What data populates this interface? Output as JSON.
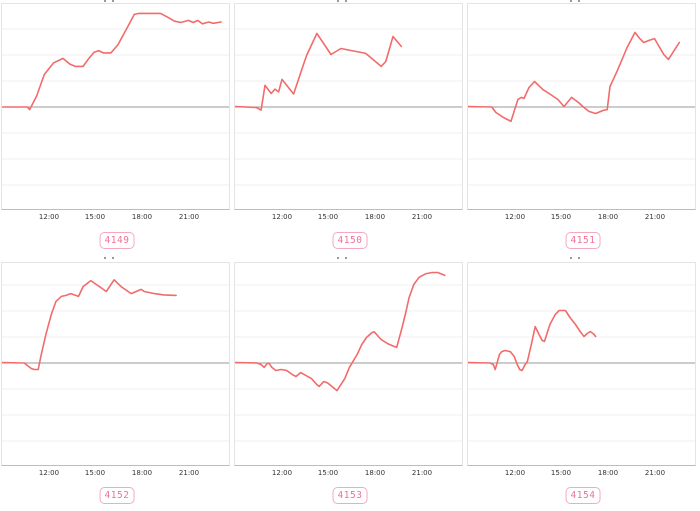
{
  "page": {
    "background": "#ffffff",
    "layout_grid": {
      "rows": 2,
      "cols": 3
    }
  },
  "colors": {
    "line": "#f26b6b",
    "zero_line": "#9a9a9a",
    "grid": "#f1efef",
    "box_border": "#e4e4e4",
    "axis_border": "#bdbdbd",
    "tick_text": "#333333",
    "badge_text": "#ee7296",
    "badge_border": "#f5a9c1"
  },
  "chart_data": [
    {
      "type": "line",
      "series_id": "4149",
      "title": "",
      "x_ticks": [
        "12:00",
        "15:00",
        "18:00",
        "21:00"
      ],
      "x_range_hours": [
        9.0,
        23.6
      ],
      "y_range": [
        -4,
        4
      ],
      "zero_baseline": true,
      "grid": "horizontal",
      "line_color": "#f26b6b",
      "points_time_value": [
        [
          9.0,
          0
        ],
        [
          10.6,
          0
        ],
        [
          10.75,
          -0.1
        ],
        [
          11.2,
          0.42
        ],
        [
          11.7,
          1.25
        ],
        [
          12.3,
          1.7
        ],
        [
          12.9,
          1.87
        ],
        [
          13.35,
          1.65
        ],
        [
          13.7,
          1.56
        ],
        [
          14.2,
          1.56
        ],
        [
          14.55,
          1.85
        ],
        [
          14.9,
          2.1
        ],
        [
          15.2,
          2.17
        ],
        [
          15.5,
          2.08
        ],
        [
          16.0,
          2.08
        ],
        [
          16.45,
          2.4
        ],
        [
          17.0,
          3.0
        ],
        [
          17.5,
          3.56
        ],
        [
          17.8,
          3.6
        ],
        [
          19.2,
          3.6
        ],
        [
          19.7,
          3.44
        ],
        [
          20.1,
          3.3
        ],
        [
          20.5,
          3.25
        ],
        [
          21.0,
          3.33
        ],
        [
          21.3,
          3.25
        ],
        [
          21.6,
          3.33
        ],
        [
          21.9,
          3.2
        ],
        [
          22.3,
          3.27
        ],
        [
          22.6,
          3.22
        ],
        [
          23.1,
          3.27
        ]
      ]
    },
    {
      "type": "line",
      "series_id": "4150",
      "title": "",
      "x_ticks": [
        "12:00",
        "15:00",
        "18:00",
        "21:00"
      ],
      "x_range_hours": [
        9.0,
        23.6
      ],
      "y_range": [
        -4,
        4
      ],
      "zero_baseline": true,
      "grid": "horizontal",
      "line_color": "#f26b6b",
      "points_time_value": [
        [
          9.0,
          0.02
        ],
        [
          10.35,
          -0.02
        ],
        [
          10.65,
          -0.12
        ],
        [
          10.9,
          0.83
        ],
        [
          11.3,
          0.52
        ],
        [
          11.55,
          0.69
        ],
        [
          11.78,
          0.58
        ],
        [
          12.0,
          1.06
        ],
        [
          12.75,
          0.5
        ],
        [
          13.45,
          1.75
        ],
        [
          13.6,
          2.0
        ],
        [
          14.25,
          2.83
        ],
        [
          15.16,
          2.02
        ],
        [
          15.8,
          2.25
        ],
        [
          17.4,
          2.06
        ],
        [
          18.4,
          1.56
        ],
        [
          18.7,
          1.75
        ],
        [
          19.16,
          2.71
        ],
        [
          19.7,
          2.33
        ]
      ]
    },
    {
      "type": "line",
      "series_id": "4151",
      "title": "",
      "x_ticks": [
        "12:00",
        "15:00",
        "18:00",
        "21:00"
      ],
      "x_range_hours": [
        9.0,
        23.6
      ],
      "y_range": [
        -4,
        4
      ],
      "zero_baseline": true,
      "grid": "horizontal",
      "line_color": "#f26b6b",
      "points_time_value": [
        [
          9.0,
          0.02
        ],
        [
          10.5,
          0
        ],
        [
          10.77,
          -0.21
        ],
        [
          11.3,
          -0.42
        ],
        [
          11.74,
          -0.55
        ],
        [
          12.19,
          0.29
        ],
        [
          12.4,
          0.37
        ],
        [
          12.58,
          0.33
        ],
        [
          12.9,
          0.75
        ],
        [
          13.26,
          0.98
        ],
        [
          13.8,
          0.67
        ],
        [
          14.2,
          0.52
        ],
        [
          14.77,
          0.29
        ],
        [
          15.16,
          0.02
        ],
        [
          15.65,
          0.37
        ],
        [
          16.1,
          0.17
        ],
        [
          16.45,
          -0.02
        ],
        [
          16.77,
          -0.17
        ],
        [
          17.2,
          -0.25
        ],
        [
          17.7,
          -0.13
        ],
        [
          17.95,
          -0.1
        ],
        [
          18.13,
          0.79
        ],
        [
          18.58,
          1.37
        ],
        [
          18.77,
          1.63
        ],
        [
          19.23,
          2.29
        ],
        [
          19.74,
          2.87
        ],
        [
          20.05,
          2.63
        ],
        [
          20.3,
          2.48
        ],
        [
          20.65,
          2.56
        ],
        [
          21.0,
          2.63
        ],
        [
          21.6,
          2.02
        ],
        [
          21.9,
          1.83
        ],
        [
          22.6,
          2.48
        ]
      ]
    },
    {
      "type": "line",
      "series_id": "4152",
      "title": "",
      "x_ticks": [
        "12:00",
        "15:00",
        "18:00",
        "21:00"
      ],
      "x_range_hours": [
        9.0,
        23.6
      ],
      "y_range": [
        -4,
        4
      ],
      "zero_baseline": true,
      "grid": "horizontal",
      "line_color": "#f26b6b",
      "points_time_value": [
        [
          9.0,
          0.02
        ],
        [
          10.4,
          0
        ],
        [
          10.85,
          -0.21
        ],
        [
          11.05,
          -0.25
        ],
        [
          11.3,
          -0.25
        ],
        [
          11.5,
          0.33
        ],
        [
          11.8,
          1.1
        ],
        [
          12.15,
          1.87
        ],
        [
          12.45,
          2.37
        ],
        [
          12.8,
          2.56
        ],
        [
          13.1,
          2.6
        ],
        [
          13.4,
          2.67
        ],
        [
          13.9,
          2.56
        ],
        [
          14.2,
          2.94
        ],
        [
          14.7,
          3.17
        ],
        [
          15.35,
          2.9
        ],
        [
          15.7,
          2.75
        ],
        [
          16.2,
          3.2
        ],
        [
          16.65,
          2.94
        ],
        [
          17.3,
          2.67
        ],
        [
          17.95,
          2.83
        ],
        [
          18.15,
          2.75
        ],
        [
          18.8,
          2.67
        ],
        [
          19.4,
          2.62
        ],
        [
          20.2,
          2.6
        ]
      ]
    },
    {
      "type": "line",
      "series_id": "4153",
      "title": "",
      "x_ticks": [
        "12:00",
        "15:00",
        "18:00",
        "21:00"
      ],
      "x_range_hours": [
        9.0,
        23.6
      ],
      "y_range": [
        -4,
        4
      ],
      "zero_baseline": true,
      "grid": "horizontal",
      "line_color": "#f26b6b",
      "points_time_value": [
        [
          9.0,
          0.02
        ],
        [
          10.4,
          0
        ],
        [
          10.65,
          -0.06
        ],
        [
          10.85,
          -0.17
        ],
        [
          11.05,
          -0.02
        ],
        [
          11.15,
          0
        ],
        [
          11.35,
          -0.17
        ],
        [
          11.6,
          -0.29
        ],
        [
          11.95,
          -0.25
        ],
        [
          12.3,
          -0.29
        ],
        [
          12.65,
          -0.44
        ],
        [
          12.9,
          -0.52
        ],
        [
          13.2,
          -0.37
        ],
        [
          13.9,
          -0.6
        ],
        [
          14.25,
          -0.83
        ],
        [
          14.4,
          -0.9
        ],
        [
          14.7,
          -0.71
        ],
        [
          14.95,
          -0.77
        ],
        [
          15.55,
          -1.06
        ],
        [
          16.05,
          -0.6
        ],
        [
          16.35,
          -0.17
        ],
        [
          16.65,
          0.13
        ],
        [
          16.85,
          0.33
        ],
        [
          17.15,
          0.71
        ],
        [
          17.45,
          0.98
        ],
        [
          17.8,
          1.17
        ],
        [
          17.95,
          1.2
        ],
        [
          18.4,
          0.9
        ],
        [
          18.8,
          0.75
        ],
        [
          19.1,
          0.67
        ],
        [
          19.4,
          0.6
        ],
        [
          19.75,
          1.37
        ],
        [
          20.0,
          1.98
        ],
        [
          20.2,
          2.52
        ],
        [
          20.5,
          3.02
        ],
        [
          20.85,
          3.3
        ],
        [
          21.3,
          3.44
        ],
        [
          21.7,
          3.48
        ],
        [
          22.05,
          3.48
        ],
        [
          22.5,
          3.37
        ]
      ]
    },
    {
      "type": "line",
      "series_id": "4154",
      "title": "",
      "x_ticks": [
        "12:00",
        "15:00",
        "18:00",
        "21:00"
      ],
      "x_range_hours": [
        9.0,
        23.6
      ],
      "y_range": [
        -4,
        4
      ],
      "zero_baseline": true,
      "grid": "horizontal",
      "line_color": "#f26b6b",
      "points_time_value": [
        [
          9.0,
          0.02
        ],
        [
          10.4,
          0
        ],
        [
          10.6,
          -0.06
        ],
        [
          10.72,
          -0.25
        ],
        [
          11.0,
          0.33
        ],
        [
          11.15,
          0.44
        ],
        [
          11.35,
          0.48
        ],
        [
          11.7,
          0.44
        ],
        [
          11.95,
          0.25
        ],
        [
          12.15,
          -0.06
        ],
        [
          12.3,
          -0.25
        ],
        [
          12.45,
          -0.29
        ],
        [
          12.65,
          -0.06
        ],
        [
          12.8,
          0.06
        ],
        [
          13.1,
          0.83
        ],
        [
          13.3,
          1.4
        ],
        [
          13.55,
          1.1
        ],
        [
          13.75,
          0.87
        ],
        [
          13.9,
          0.83
        ],
        [
          14.25,
          1.48
        ],
        [
          14.6,
          1.87
        ],
        [
          14.85,
          2.02
        ],
        [
          15.25,
          2.02
        ],
        [
          15.55,
          1.75
        ],
        [
          15.9,
          1.48
        ],
        [
          16.2,
          1.21
        ],
        [
          16.45,
          1.02
        ],
        [
          16.65,
          1.13
        ],
        [
          16.85,
          1.21
        ],
        [
          17.1,
          1.1
        ],
        [
          17.2,
          1.02
        ]
      ]
    }
  ]
}
